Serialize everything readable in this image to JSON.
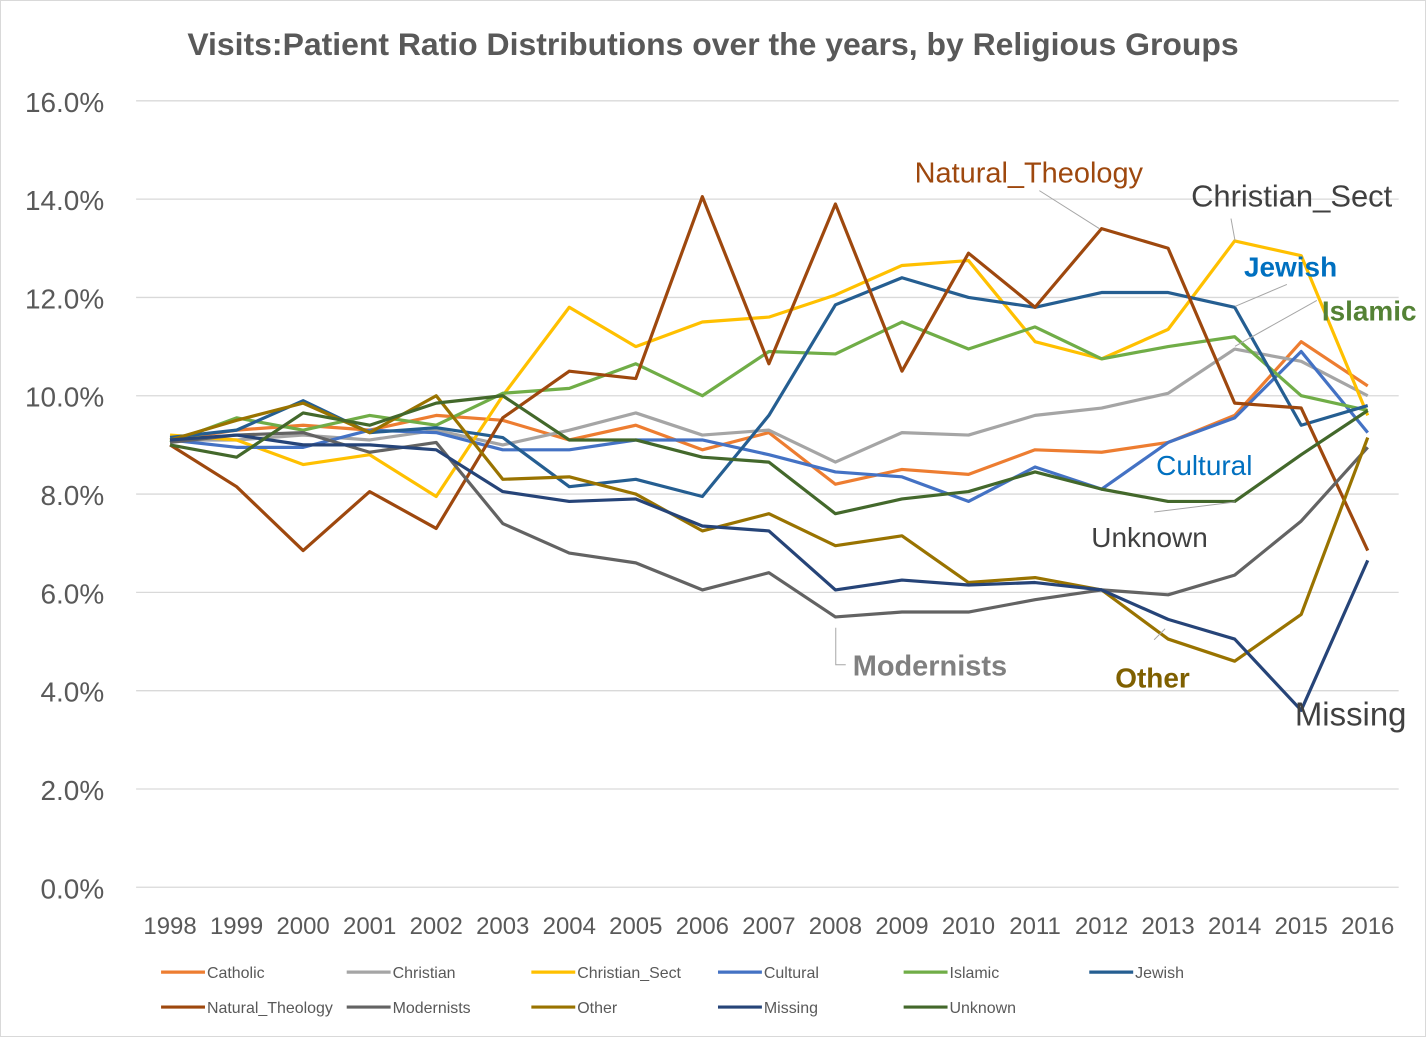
{
  "chart_data": {
    "type": "line",
    "title": "Visits:Patient Ratio Distributions over the years, by Religious Groups",
    "xlabel": "",
    "ylabel": "",
    "ylim": [
      0,
      16
    ],
    "yticks": [
      "0.0%",
      "2.0%",
      "4.0%",
      "6.0%",
      "8.0%",
      "10.0%",
      "12.0%",
      "14.0%",
      "16.0%"
    ],
    "ytick_values": [
      0,
      2,
      4,
      6,
      8,
      10,
      12,
      14,
      16
    ],
    "grid": true,
    "legend": "bottom",
    "x": [
      "1998",
      "1999",
      "2000",
      "2001",
      "2002",
      "2003",
      "2004",
      "2005",
      "2006",
      "2007",
      "2008",
      "2009",
      "2010",
      "2011",
      "2012",
      "2013",
      "2014",
      "2015",
      "2016"
    ],
    "series": [
      {
        "name": "Catholic",
        "color": "#ED7D31",
        "values": [
          9.1,
          9.3,
          9.4,
          9.3,
          9.6,
          9.5,
          9.1,
          9.4,
          8.9,
          9.25,
          8.2,
          8.5,
          8.4,
          8.9,
          8.85,
          9.05,
          9.6,
          11.1,
          10.2
        ]
      },
      {
        "name": "Christian",
        "color": "#A5A5A5",
        "values": [
          9.1,
          9.1,
          9.2,
          9.1,
          9.3,
          9.0,
          9.3,
          9.65,
          9.2,
          9.3,
          8.65,
          9.25,
          9.2,
          9.6,
          9.75,
          10.05,
          10.95,
          10.7,
          10.0
        ]
      },
      {
        "name": "Christian_Sect",
        "color": "#FFC000",
        "values": [
          9.2,
          9.1,
          8.6,
          8.8,
          7.95,
          10.0,
          11.8,
          11.0,
          11.5,
          11.6,
          12.05,
          12.65,
          12.75,
          11.1,
          10.75,
          11.35,
          13.15,
          12.85,
          9.6
        ]
      },
      {
        "name": "Cultural",
        "color": "#4472C4",
        "values": [
          9.1,
          8.95,
          8.95,
          9.3,
          9.25,
          8.9,
          8.9,
          9.1,
          9.1,
          8.8,
          8.45,
          8.35,
          7.85,
          8.55,
          8.1,
          9.05,
          9.55,
          10.9,
          9.25
        ]
      },
      {
        "name": "Islamic",
        "color": "#70AD47",
        "values": [
          9.05,
          9.55,
          9.3,
          9.6,
          9.4,
          10.05,
          10.15,
          10.65,
          10.0,
          10.9,
          10.85,
          11.5,
          10.95,
          11.4,
          10.75,
          11.0,
          11.2,
          10.0,
          9.7
        ]
      },
      {
        "name": "Jewish",
        "color": "#255E91",
        "values": [
          9.15,
          9.3,
          9.9,
          9.25,
          9.35,
          9.15,
          8.15,
          8.3,
          7.95,
          9.6,
          11.85,
          12.4,
          12.0,
          11.8,
          12.1,
          12.1,
          11.8,
          9.4,
          9.8
        ]
      },
      {
        "name": "Natural_Theology",
        "color": "#9E480E",
        "values": [
          9.0,
          8.15,
          6.85,
          8.05,
          7.3,
          9.55,
          10.5,
          10.35,
          14.05,
          10.65,
          13.9,
          10.5,
          12.9,
          11.8,
          13.4,
          13.0,
          9.85,
          9.75,
          6.85
        ]
      },
      {
        "name": "Modernists",
        "color": "#636363",
        "values": [
          9.05,
          9.2,
          9.25,
          8.85,
          9.05,
          7.4,
          6.8,
          6.6,
          6.05,
          6.4,
          5.5,
          5.6,
          5.6,
          5.85,
          6.05,
          5.95,
          6.35,
          7.45,
          8.95
        ]
      },
      {
        "name": "Other",
        "color": "#997300",
        "values": [
          9.1,
          9.5,
          9.85,
          9.25,
          10.0,
          8.3,
          8.35,
          8.0,
          7.25,
          7.6,
          6.95,
          7.15,
          6.2,
          6.3,
          6.05,
          5.05,
          4.6,
          5.55,
          9.15
        ]
      },
      {
        "name": "Missing",
        "color": "#264478",
        "values": [
          9.1,
          9.2,
          9.0,
          9.0,
          8.9,
          8.05,
          7.85,
          7.9,
          7.35,
          7.25,
          6.05,
          6.25,
          6.15,
          6.2,
          6.05,
          5.45,
          5.05,
          3.6,
          6.65
        ]
      },
      {
        "name": "Unknown",
        "color": "#43682B",
        "values": [
          9.0,
          8.75,
          9.65,
          9.4,
          9.85,
          10.0,
          9.1,
          9.1,
          8.75,
          8.65,
          7.6,
          7.9,
          8.05,
          8.45,
          8.1,
          7.85,
          7.85,
          8.8,
          9.7
        ]
      }
    ],
    "annotations": [
      {
        "text": "Natural_Theology",
        "series": "Natural_Theology",
        "color": "#9E480E"
      },
      {
        "text": "Christian_Sect",
        "series": "Christian_Sect",
        "color": "#404040"
      },
      {
        "text": "Jewish",
        "series": "Jewish",
        "color": "#0070C0"
      },
      {
        "text": "Islamic",
        "series": "Islamic",
        "color": "#548235"
      },
      {
        "text": "Cultural",
        "series": "Cultural",
        "color": "#0070C0"
      },
      {
        "text": "Unknown",
        "series": "Unknown",
        "color": "#404040"
      },
      {
        "text": "Modernists",
        "series": "Modernists",
        "color": "#808080"
      },
      {
        "text": "Other",
        "series": "Other",
        "color": "#7F6000"
      },
      {
        "text": "Missing",
        "series": "Missing",
        "color": "#404040"
      }
    ]
  }
}
